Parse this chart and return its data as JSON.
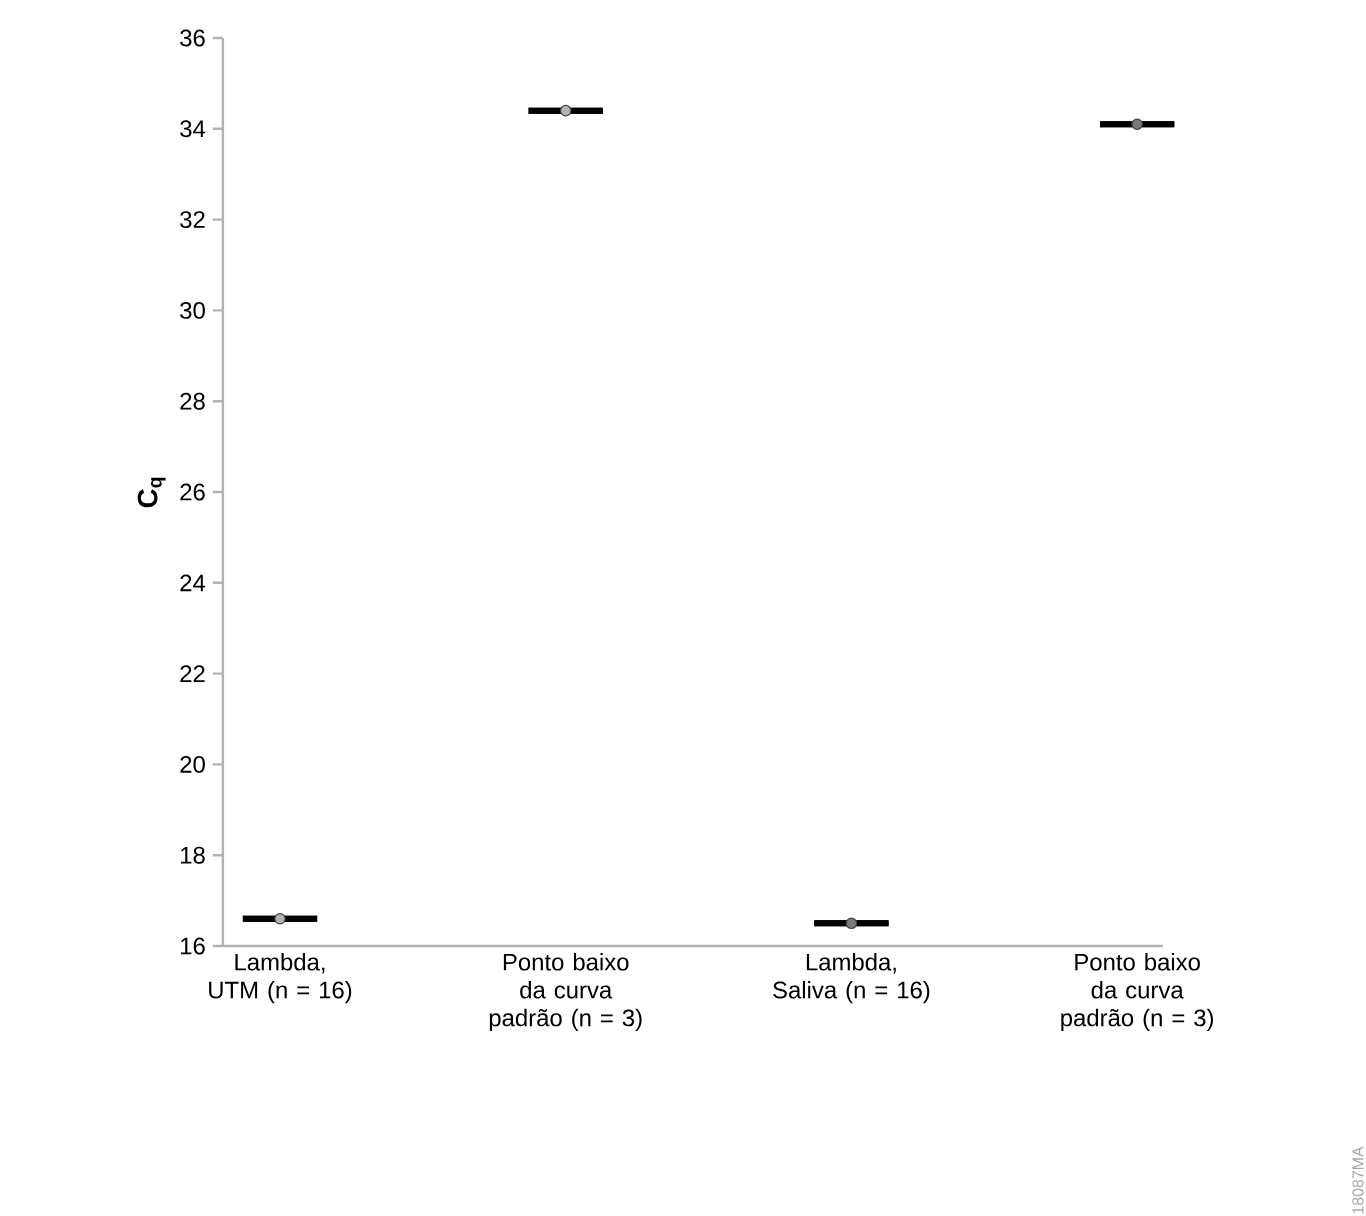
{
  "chart_data": {
    "type": "scatter",
    "ylabel": "C$_{q}$",
    "categories": [
      "Lambda, UTM (n = 16)",
      "Ponto baixo da curva padrão (n = 3)",
      "Lambda, Saliva (n = 16)",
      "Ponto baixo da curva padrão (n = 3)"
    ],
    "series": [
      {
        "marker": "circle",
        "colors": [
          "#b4b4b4",
          "#b4b4b4",
          "#7a7a7a",
          "#7a7a7a"
        ],
        "values": [
          16.6,
          34.4,
          16.5,
          34.1
        ]
      },
      {
        "type": "box",
        "color": "#000000",
        "boxes": [
          {
            "low": 16.6,
            "q1": 16.6,
            "median": 16.6,
            "q3": 16.6,
            "high": 16.6
          },
          {
            "low": 34.4,
            "q1": 34.4,
            "median": 34.4,
            "q3": 34.4,
            "high": 34.4
          },
          {
            "low": 16.5,
            "q1": 16.5,
            "median": 16.5,
            "q3": 16.5,
            "high": 16.5
          },
          {
            "low": 34.1,
            "q1": 34.1,
            "median": 34.1,
            "q3": 34.1,
            "high": 34.1
          }
        ]
      }
    ],
    "ylim": [
      16,
      36
    ],
    "yticks": [
      16,
      18,
      20,
      22,
      24,
      26,
      28,
      30,
      32,
      34,
      36
    ],
    "grid": false,
    "annotations": [
      "18087MA"
    ]
  }
}
